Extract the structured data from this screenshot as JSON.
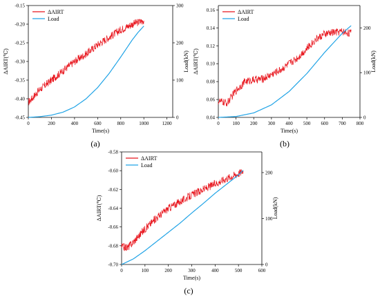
{
  "colors": {
    "airt": "#e8141c",
    "load": "#1fa3e6",
    "axis": "#000000"
  },
  "panels": [
    {
      "id": "a",
      "label": "(a)",
      "xlabel": "Time(s)",
      "ylabel_left": "ΔAIRT(℃)",
      "ylabel_right": "Load(kN)",
      "x_ticks": [
        "0",
        "200",
        "400",
        "600",
        "800",
        "1000",
        "1200"
      ],
      "y_left_ticks": [
        "-0.45",
        "-0.40",
        "-0.35",
        "-0.30",
        "-0.25",
        "-0.20",
        "-0.15"
      ],
      "y_right_ticks": [
        "0",
        "100",
        "200",
        "300"
      ]
    },
    {
      "id": "b",
      "label": "(b)",
      "xlabel": "Time(s)",
      "ylabel_left": "ΔAIRT(℃)",
      "ylabel_right": "Load(kN)",
      "x_ticks": [
        "0",
        "100",
        "200",
        "300",
        "400",
        "500",
        "600",
        "700",
        "800"
      ],
      "y_left_ticks": [
        "0.04",
        "0.06",
        "0.08",
        "0.10",
        "0.12",
        "0.14",
        "0.16"
      ],
      "y_right_ticks": [
        "0",
        "100",
        "200"
      ]
    },
    {
      "id": "c",
      "label": "(c)",
      "xlabel": "Time(s)",
      "ylabel_left": "ΔAIRT(℃)",
      "ylabel_right": "Load(kN)",
      "x_ticks": [
        "0",
        "100",
        "200",
        "300",
        "400",
        "500",
        "600"
      ],
      "y_left_ticks": [
        "-0.70",
        "-0.68",
        "-0.66",
        "-0.64",
        "-0.62",
        "-0.60",
        "-0.58"
      ],
      "y_right_ticks": [
        "0",
        "100",
        "200"
      ]
    }
  ],
  "chart_data": [
    {
      "type": "line",
      "legend": [
        "ΔAIRT",
        "Load"
      ],
      "legend_position": "top-left",
      "xlim": [
        0,
        1250
      ],
      "ylim_left": [
        -0.45,
        -0.15
      ],
      "ylim_right": [
        0,
        300
      ],
      "series": [
        {
          "name": "ΔAIRT",
          "axis": "left",
          "x": [
            0,
            100,
            200,
            300,
            400,
            500,
            600,
            700,
            800,
            900,
            1000
          ],
          "y": [
            -0.41,
            -0.375,
            -0.35,
            -0.325,
            -0.3,
            -0.28,
            -0.255,
            -0.235,
            -0.215,
            -0.2,
            -0.19
          ]
        },
        {
          "name": "Load",
          "axis": "right",
          "x": [
            0,
            100,
            200,
            300,
            400,
            500,
            600,
            700,
            800,
            900,
            950,
            1000
          ],
          "y": [
            0,
            2,
            6,
            14,
            28,
            50,
            80,
            118,
            162,
            208,
            228,
            245
          ]
        }
      ]
    },
    {
      "type": "line",
      "legend": [
        "ΔAIRT",
        "Load"
      ],
      "legend_position": "top-left",
      "xlim": [
        0,
        800
      ],
      "ylim_left": [
        0.04,
        0.165
      ],
      "ylim_right": [
        0,
        250
      ],
      "series": [
        {
          "name": "ΔAIRT",
          "axis": "left",
          "x": [
            0,
            50,
            100,
            150,
            200,
            250,
            300,
            350,
            400,
            450,
            500,
            550,
            600,
            650,
            700,
            750
          ],
          "y": [
            0.058,
            0.056,
            0.07,
            0.08,
            0.082,
            0.083,
            0.088,
            0.093,
            0.1,
            0.107,
            0.117,
            0.127,
            0.133,
            0.135,
            0.136,
            0.134
          ]
        },
        {
          "name": "Load",
          "axis": "right",
          "x": [
            0,
            100,
            200,
            300,
            400,
            500,
            600,
            700,
            750
          ],
          "y": [
            0,
            2,
            10,
            28,
            58,
            98,
            145,
            188,
            205
          ]
        }
      ]
    },
    {
      "type": "line",
      "legend": [
        "ΔAIRT",
        "Load"
      ],
      "legend_position": "top-left",
      "xlim": [
        0,
        600
      ],
      "ylim_left": [
        -0.7,
        -0.58
      ],
      "ylim_right": [
        0,
        245
      ],
      "series": [
        {
          "name": "ΔAIRT",
          "axis": "left",
          "x": [
            0,
            25,
            50,
            100,
            150,
            200,
            250,
            300,
            350,
            400,
            450,
            500,
            520
          ],
          "y": [
            -0.681,
            -0.682,
            -0.676,
            -0.662,
            -0.65,
            -0.64,
            -0.633,
            -0.626,
            -0.62,
            -0.614,
            -0.608,
            -0.603,
            -0.6
          ]
        },
        {
          "name": "Load",
          "axis": "right",
          "x": [
            0,
            50,
            100,
            150,
            200,
            250,
            300,
            350,
            400,
            450,
            500,
            520
          ],
          "y": [
            0,
            12,
            30,
            50,
            70,
            90,
            112,
            133,
            155,
            175,
            195,
            205
          ]
        }
      ]
    }
  ]
}
